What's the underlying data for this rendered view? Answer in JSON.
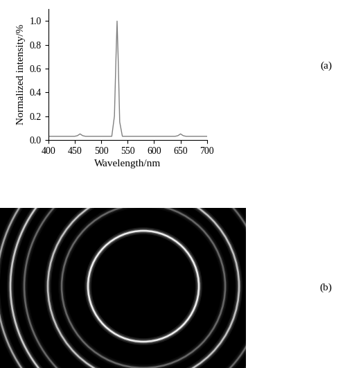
{
  "chart_data": {
    "type": "line",
    "x_label": "Wavelength/nm",
    "y_label": "Normalized intensity/%",
    "x": [
      400,
      420,
      440,
      450,
      455,
      460,
      465,
      470,
      490,
      510,
      520,
      525,
      528,
      530,
      532,
      535,
      540,
      550,
      580,
      610,
      640,
      645,
      650,
      655,
      660,
      680,
      700
    ],
    "values": [
      0.03,
      0.03,
      0.03,
      0.03,
      0.035,
      0.05,
      0.035,
      0.03,
      0.03,
      0.03,
      0.03,
      0.2,
      0.7,
      1.0,
      0.7,
      0.15,
      0.03,
      0.03,
      0.03,
      0.03,
      0.03,
      0.035,
      0.05,
      0.035,
      0.03,
      0.03,
      0.03
    ],
    "color": "#808080",
    "xlim": [
      400,
      700
    ],
    "xticks": [
      400,
      450,
      500,
      550,
      600,
      650,
      700
    ],
    "ylim": [
      0.0,
      1.1
    ],
    "yticks": [
      0.0,
      0.2,
      0.4,
      0.6,
      0.8,
      1.0
    ],
    "grid": false,
    "panel_label": "(a)"
  },
  "image": {
    "panel_label": "(b)"
  }
}
